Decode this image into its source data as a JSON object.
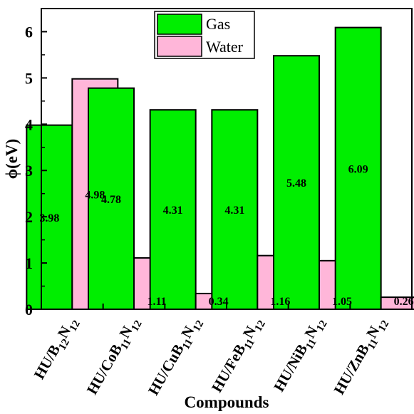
{
  "chart_data": {
    "type": "bar",
    "xlabel": "Compounds",
    "ylabel": "ϕ(eV)",
    "ylim": [
      0,
      6.5
    ],
    "yticks": [
      "0",
      "1",
      "2",
      "3",
      "4",
      "5",
      "6"
    ],
    "categories": [
      {
        "prefix": "HU/",
        "parts": [
          [
            "B",
            ""
          ],
          [
            "12",
            "sub"
          ],
          [
            "N",
            ""
          ],
          [
            "12",
            "sub"
          ]
        ]
      },
      {
        "prefix": "HU/",
        "parts": [
          [
            "CoB",
            ""
          ],
          [
            "11",
            "sub"
          ],
          [
            "N",
            ""
          ],
          [
            "12",
            "sub"
          ]
        ]
      },
      {
        "prefix": "HU/",
        "parts": [
          [
            "CuB",
            ""
          ],
          [
            "11",
            "sub"
          ],
          [
            "N",
            ""
          ],
          [
            "12",
            "sub"
          ]
        ]
      },
      {
        "prefix": "HU/",
        "parts": [
          [
            "FeB",
            ""
          ],
          [
            "11",
            "sub"
          ],
          [
            "N",
            ""
          ],
          [
            "12",
            "sub"
          ]
        ]
      },
      {
        "prefix": "HU/",
        "parts": [
          [
            "NiB",
            ""
          ],
          [
            "11",
            "sub"
          ],
          [
            "N",
            ""
          ],
          [
            "12",
            "sub"
          ]
        ]
      },
      {
        "prefix": "HU/",
        "parts": [
          [
            "ZnB",
            ""
          ],
          [
            "11",
            "sub"
          ],
          [
            "N",
            ""
          ],
          [
            "12",
            "sub"
          ]
        ]
      }
    ],
    "series": [
      {
        "name": "Gas",
        "color": "#00ee00",
        "values": [
          3.98,
          4.78,
          4.31,
          4.31,
          5.48,
          6.09
        ],
        "labels": [
          "3.98",
          "4.78",
          "4.31",
          "4.31",
          "5.48",
          "6.09"
        ]
      },
      {
        "name": "Water",
        "color": "#ffb6d9",
        "values": [
          4.98,
          1.11,
          0.34,
          1.16,
          1.05,
          0.26
        ],
        "labels": [
          "4.98",
          "1.11",
          "0.34",
          "1.16",
          "1.05",
          "0.26"
        ]
      }
    ],
    "legend_position": "top-center",
    "grid": false
  }
}
